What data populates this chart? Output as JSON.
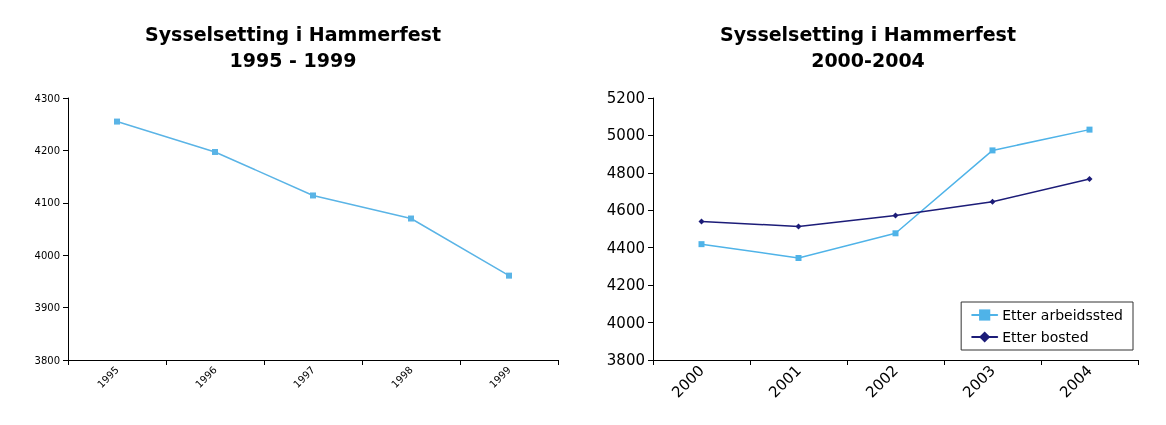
{
  "chart_data": [
    {
      "type": "line",
      "title": "Sysselsetting i Hammerfest\n1995 - 1999",
      "categories": [
        "1995",
        "1996",
        "1997",
        "1998",
        "1999"
      ],
      "series": [
        {
          "color": "#5ab4e6",
          "values": [
            4255,
            4197,
            4114,
            4070,
            3961
          ]
        }
      ],
      "ylim": [
        3800,
        4300
      ],
      "yticks": [
        3800,
        3900,
        4000,
        4100,
        4200,
        4300
      ],
      "grid": false,
      "legend": false,
      "marker": "square",
      "line_style": "solid"
    },
    {
      "type": "line",
      "title": "Sysselsetting i Hammerfest\n2000-2004",
      "categories": [
        "2000",
        "2001",
        "2002",
        "2003",
        "2004"
      ],
      "series": [
        {
          "name": "Etter arbeidssted",
          "color": "#4fb3e8",
          "values": [
            4419,
            4345,
            4477,
            4920,
            5031
          ],
          "marker": "square"
        },
        {
          "name": "Etter bosted",
          "color": "#1c1c78",
          "values": [
            4540,
            4514,
            4572,
            4646,
            4767
          ],
          "marker": "diamond"
        }
      ],
      "ylim": [
        3800,
        5200
      ],
      "yticks": [
        3800,
        4000,
        4200,
        4400,
        4600,
        4800,
        5000,
        5200
      ],
      "grid": false,
      "legend": "bottom right",
      "line_style": "solid"
    }
  ]
}
